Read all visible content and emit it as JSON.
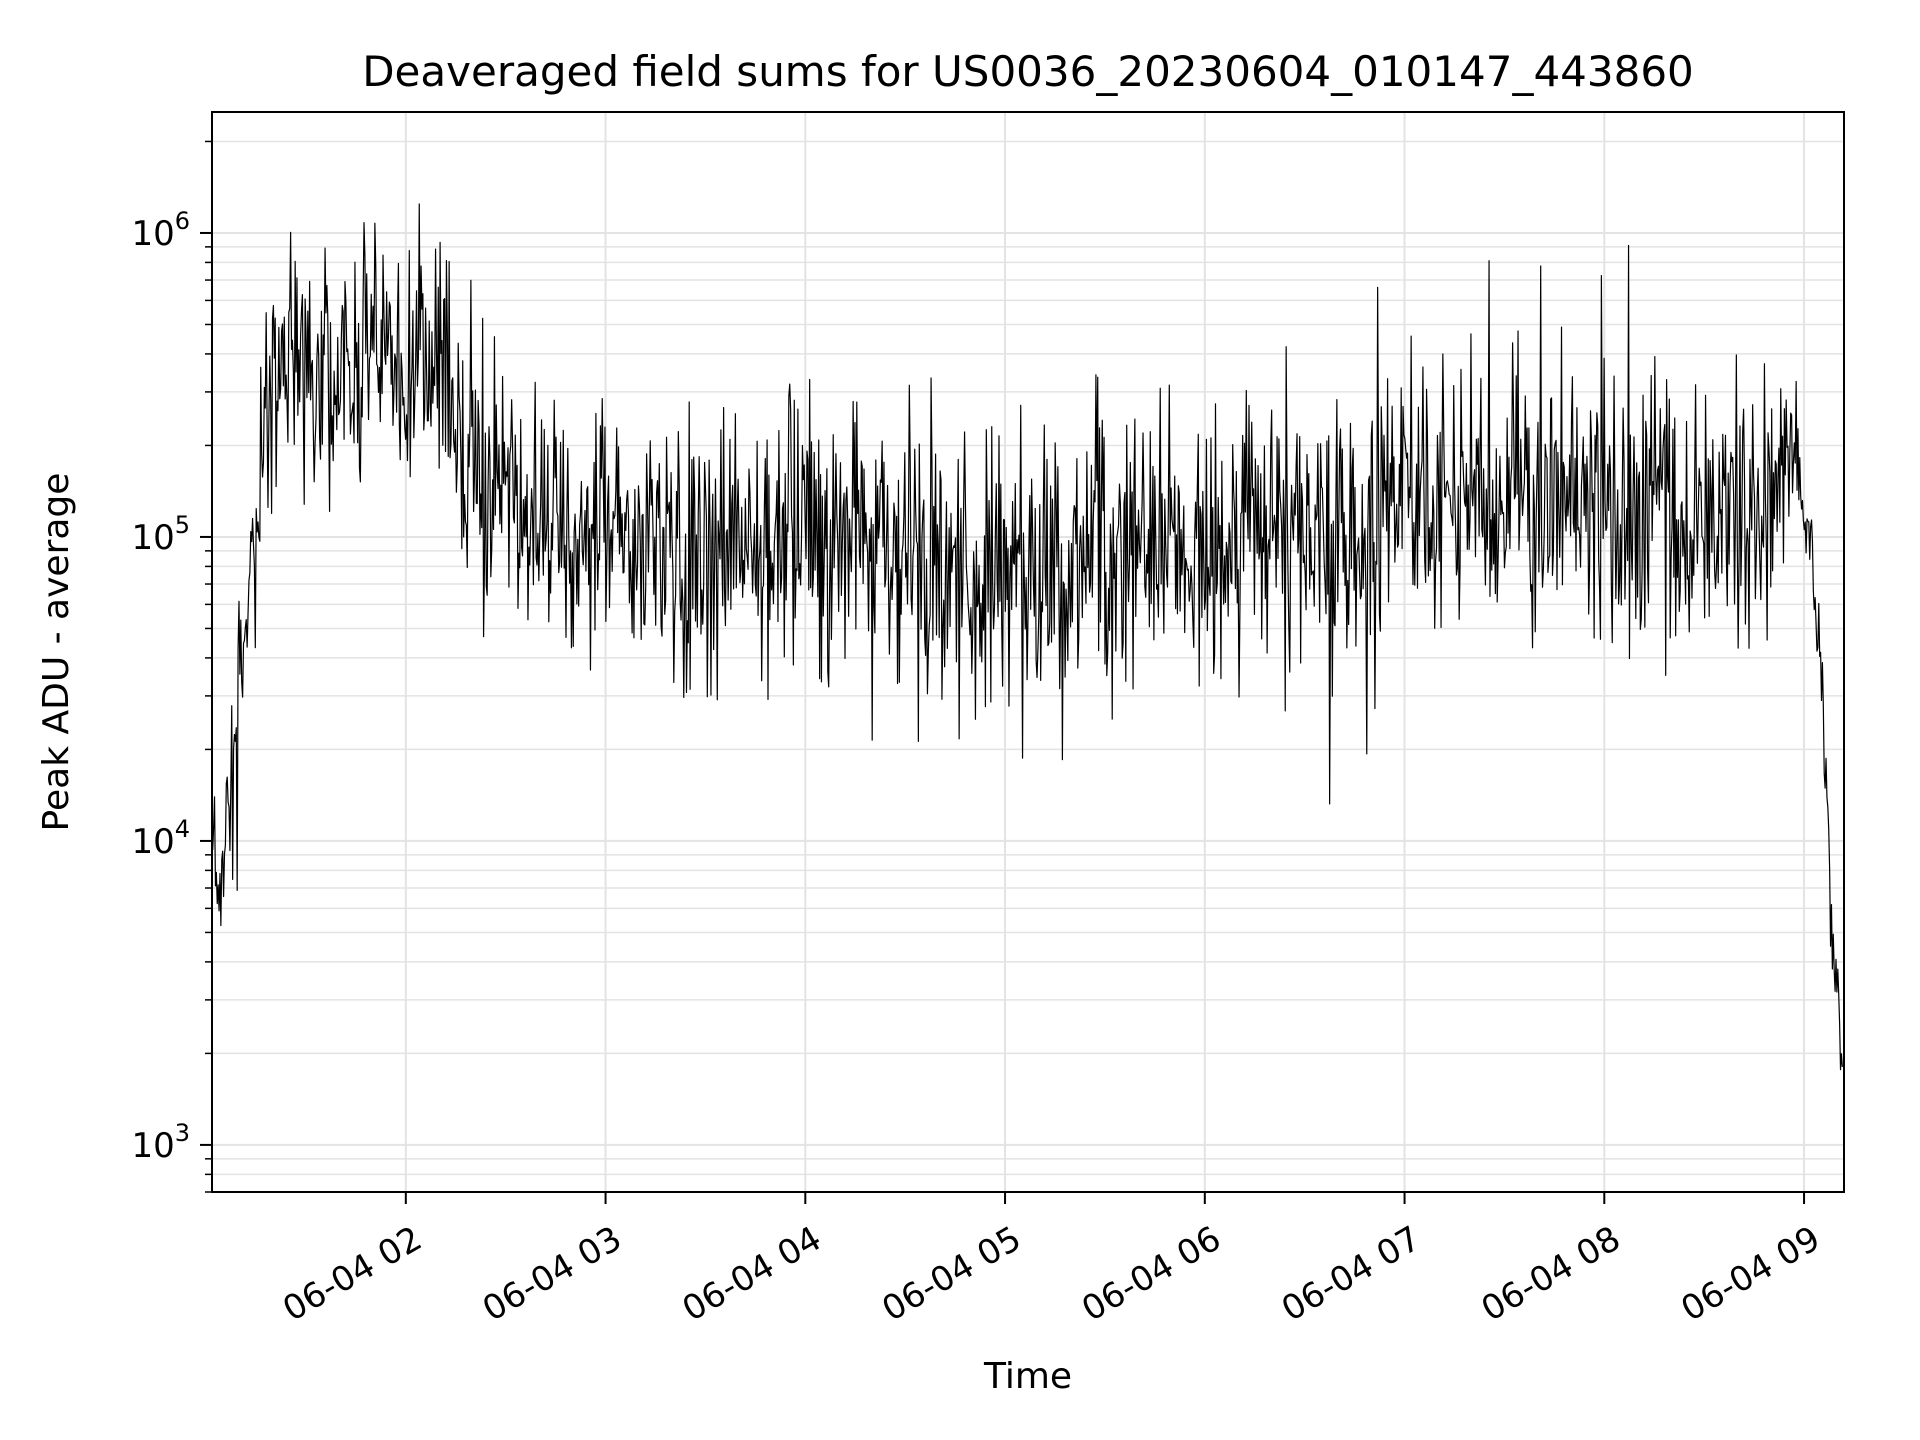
{
  "chart_data": {
    "type": "line",
    "title": "Deaveraged field sums for US0036_20230604_010147_443860",
    "xlabel": "Time",
    "ylabel": "Peak ADU - average",
    "x_range": [
      "2023-06-04T01:01:47",
      "2023-06-04T09:12:00"
    ],
    "x_ticks": [
      "06-04 02",
      "06-04 03",
      "06-04 04",
      "06-04 05",
      "06-04 06",
      "06-04 07",
      "06-04 08",
      "06-04 09"
    ],
    "x_tick_times": [
      "2023-06-04T02:00:00",
      "2023-06-04T03:00:00",
      "2023-06-04T04:00:00",
      "2023-06-04T05:00:00",
      "2023-06-04T06:00:00",
      "2023-06-04T07:00:00",
      "2023-06-04T08:00:00",
      "2023-06-04T09:00:00"
    ],
    "y_scale": "log",
    "ylim": [
      700,
      2500000
    ],
    "y_ticks": [
      1000,
      10000,
      100000,
      1000000
    ],
    "y_tick_labels": [
      {
        "base": "10",
        "exp": "3"
      },
      {
        "base": "10",
        "exp": "4"
      },
      {
        "base": "10",
        "exp": "5"
      },
      {
        "base": "10",
        "exp": "6"
      }
    ],
    "grid": true,
    "line_color": "#000000",
    "grid_color": "#e3e3e3",
    "series": [
      {
        "x": [
          "2023-06-04T01:02:00",
          "2023-06-04T01:05:00",
          "2023-06-04T01:08:00",
          "2023-06-04T01:12:00",
          "2023-06-04T01:16:00",
          "2023-06-04T01:20:00",
          "2023-06-04T01:25:00",
          "2023-06-04T01:30:00",
          "2023-06-04T01:40:00",
          "2023-06-04T01:50:00",
          "2023-06-04T02:00:00",
          "2023-06-04T02:10:00",
          "2023-06-04T02:20:00",
          "2023-06-04T02:30:00",
          "2023-06-04T02:40:00",
          "2023-06-04T03:00:00",
          "2023-06-04T03:20:00",
          "2023-06-04T03:40:00",
          "2023-06-04T04:00:00",
          "2023-06-04T04:20:00",
          "2023-06-04T04:40:00",
          "2023-06-04T05:00:00",
          "2023-06-04T05:20:00",
          "2023-06-04T05:40:00",
          "2023-06-04T06:00:00",
          "2023-06-04T06:20:00",
          "2023-06-04T06:40:00",
          "2023-06-04T07:00:00",
          "2023-06-04T07:20:00",
          "2023-06-04T07:40:00",
          "2023-06-04T08:00:00",
          "2023-06-04T08:20:00",
          "2023-06-04T08:40:00",
          "2023-06-04T08:50:00",
          "2023-06-04T08:57:00",
          "2023-06-04T09:00:00",
          "2023-06-04T09:03:00",
          "2023-06-04T09:06:00",
          "2023-06-04T09:08:00",
          "2023-06-04T09:10:00",
          "2023-06-04T09:11:30"
        ],
        "median": [
          9000,
          7000,
          15000,
          60000,
          120000,
          350000,
          400000,
          300000,
          350000,
          450000,
          400000,
          350000,
          200000,
          150000,
          110000,
          100000,
          90000,
          95000,
          110000,
          90000,
          80000,
          70000,
          80000,
          100000,
          90000,
          120000,
          100000,
          130000,
          140000,
          150000,
          120000,
          110000,
          115000,
          120000,
          200000,
          120000,
          70000,
          20000,
          6000,
          3500,
          1500
        ],
        "spread": [
          2.0,
          1.7,
          2.2,
          1.8,
          1.8,
          2.2,
          2.5,
          2.7,
          2.8,
          2.8,
          2.8,
          2.6,
          2.6,
          2.6,
          2.6,
          2.6,
          2.7,
          2.6,
          2.6,
          2.7,
          2.8,
          2.8,
          2.7,
          2.6,
          2.6,
          2.6,
          2.7,
          2.6,
          2.6,
          2.6,
          2.6,
          2.6,
          2.5,
          2.4,
          2.0,
          1.4,
          1.3,
          1.3,
          1.3,
          1.3,
          1.2
        ],
        "samples": 1800,
        "max": 1700000,
        "min": 1000
      }
    ]
  }
}
